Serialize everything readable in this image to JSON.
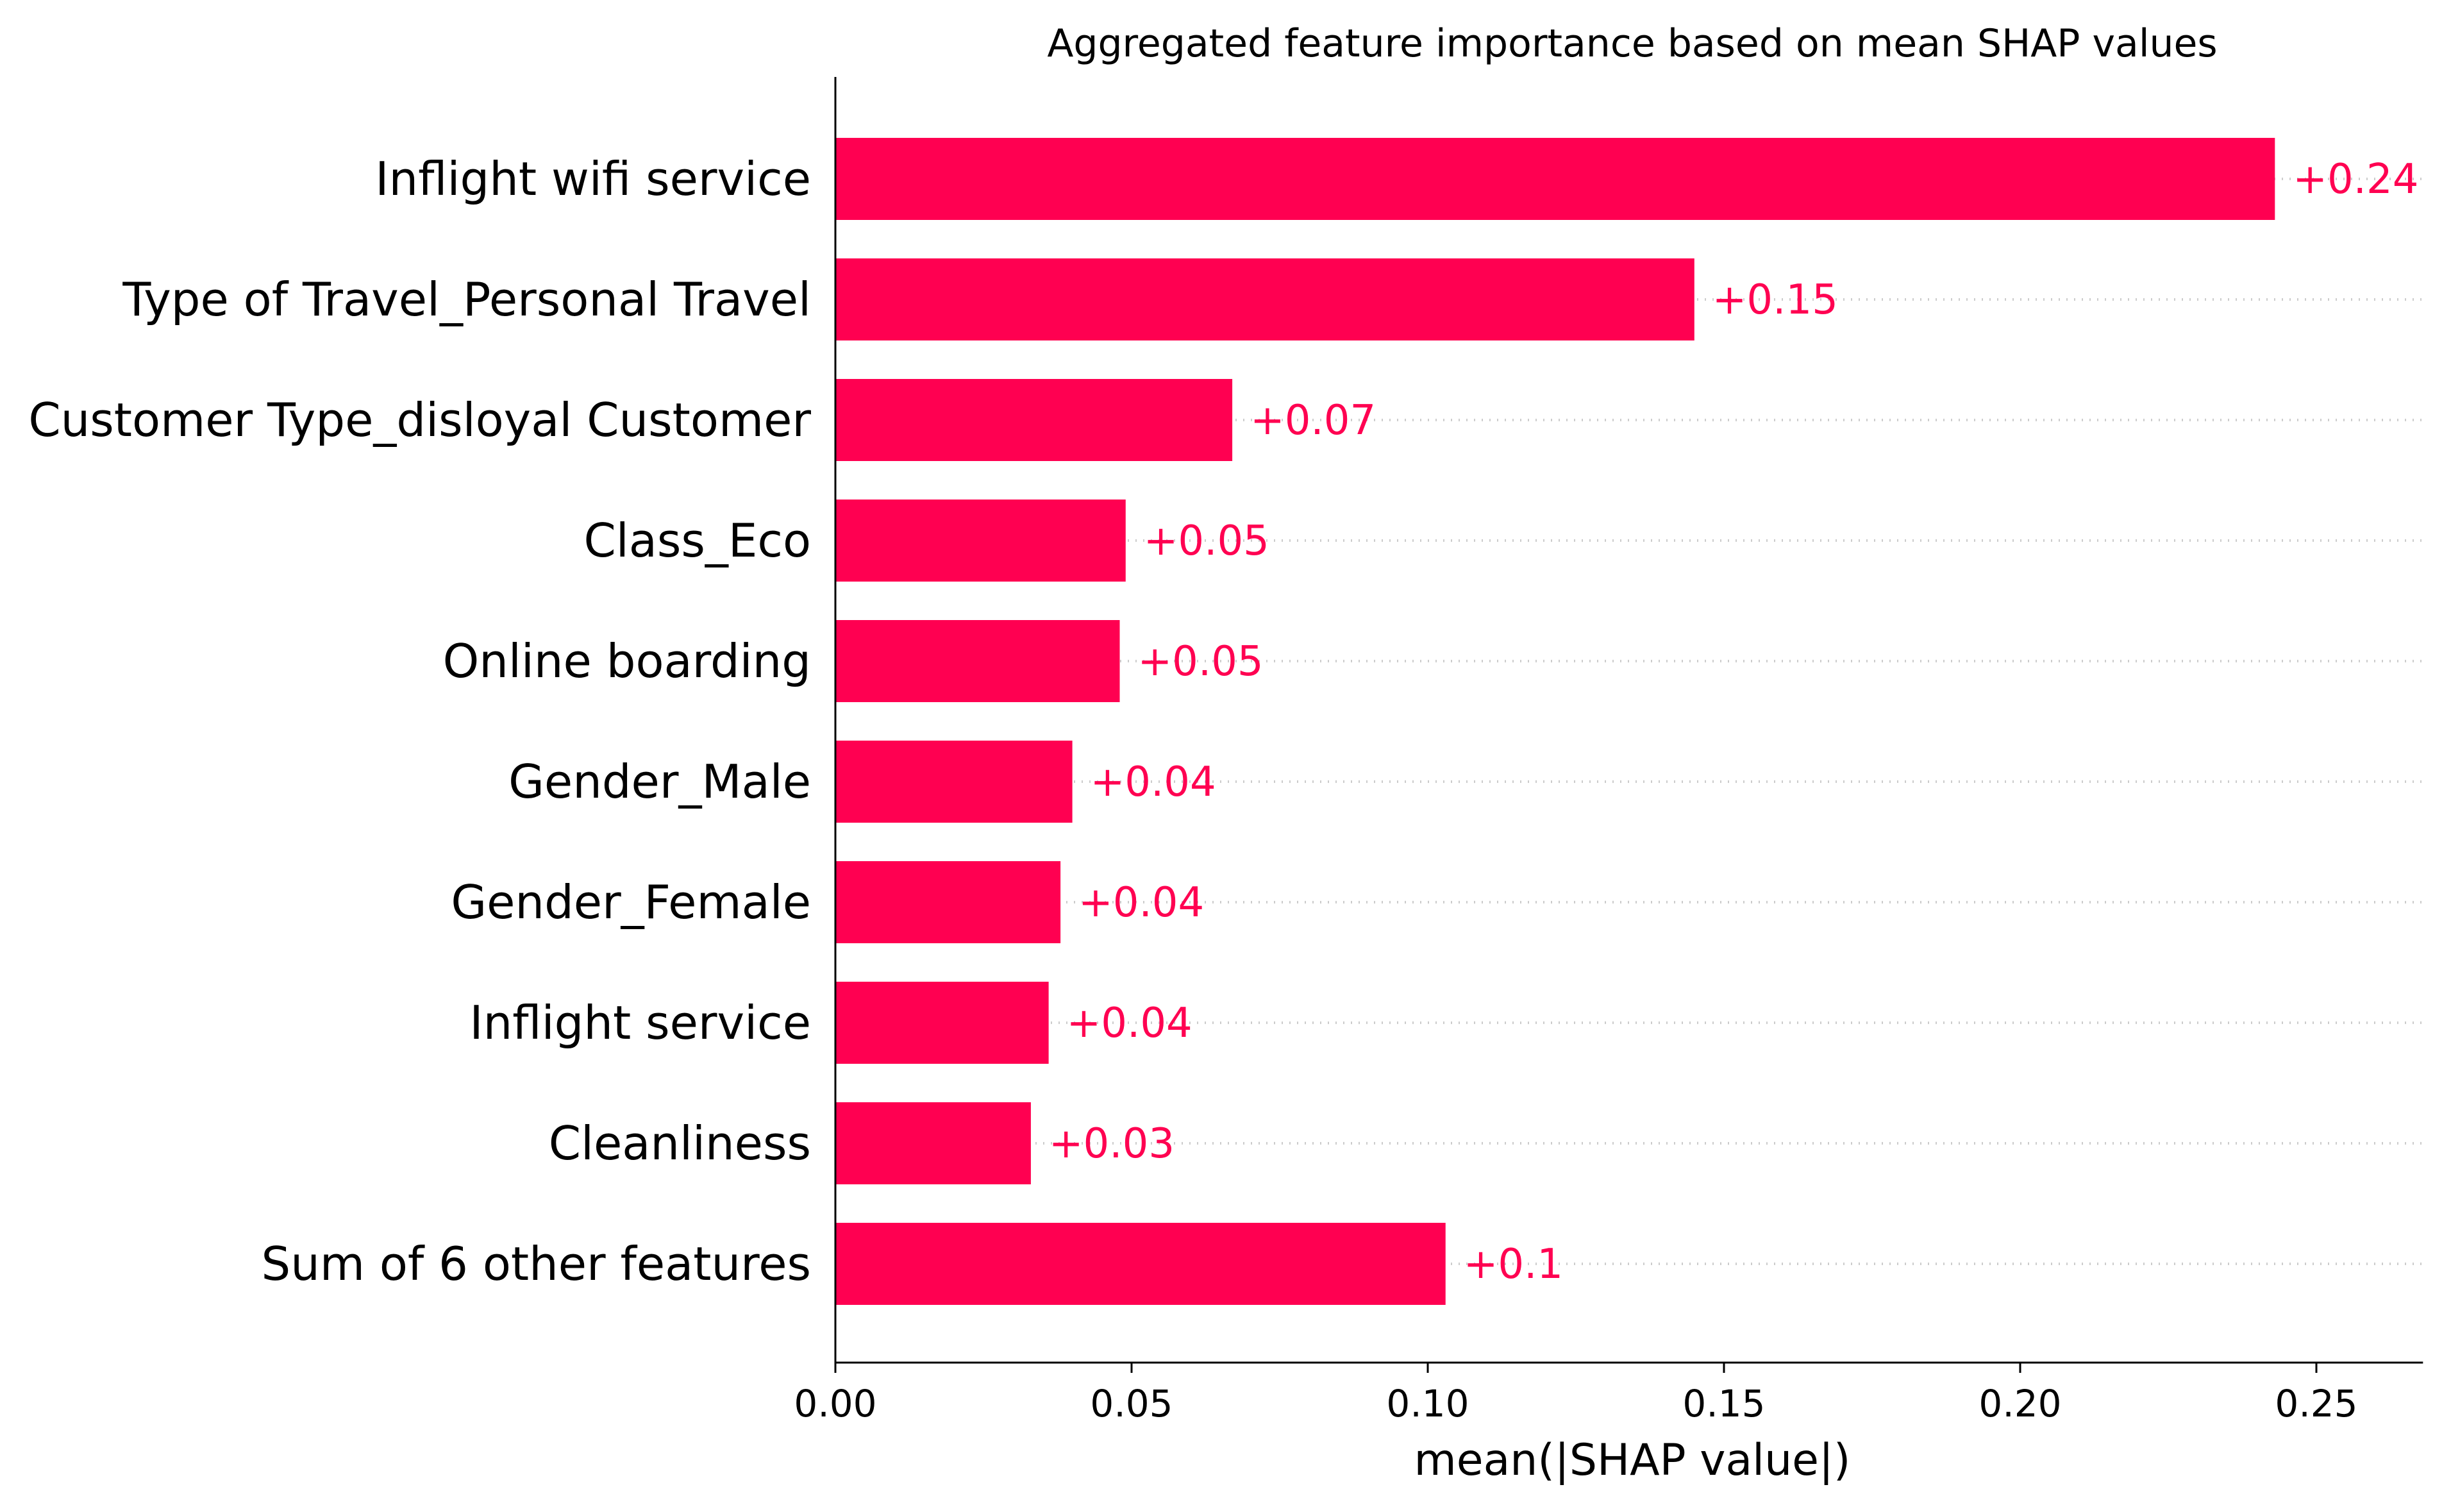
{
  "chart_data": {
    "type": "bar",
    "orientation": "horizontal",
    "title": "Aggregated feature importance based on mean SHAP values",
    "xlabel": "mean(|SHAP value|)",
    "ylabel": "",
    "categories": [
      "Inflight wifi service",
      "Type of Travel_Personal Travel",
      "Customer Type_disloyal Customer",
      "Class_Eco",
      "Online boarding",
      "Gender_Male",
      "Gender_Female",
      "Inflight service",
      "Cleanliness",
      "Sum of 6 other features"
    ],
    "values": [
      0.243,
      0.145,
      0.067,
      0.049,
      0.048,
      0.04,
      0.038,
      0.036,
      0.033,
      0.103
    ],
    "value_labels": [
      "+0.24",
      "+0.15",
      "+0.07",
      "+0.05",
      "+0.05",
      "+0.04",
      "+0.04",
      "+0.04",
      "+0.03",
      "+0.1"
    ],
    "xticks": [
      0.0,
      0.05,
      0.1,
      0.15,
      0.2,
      0.25
    ],
    "xtick_labels": [
      "0.00",
      "0.05",
      "0.10",
      "0.15",
      "0.20",
      "0.25"
    ],
    "xlim": [
      0,
      0.268
    ],
    "grid": "dotted row guides",
    "legend": "none",
    "colors": {
      "bar": "#ff0051",
      "label": "#ff0051",
      "guide": "#cccccc",
      "axis": "#000000"
    }
  }
}
